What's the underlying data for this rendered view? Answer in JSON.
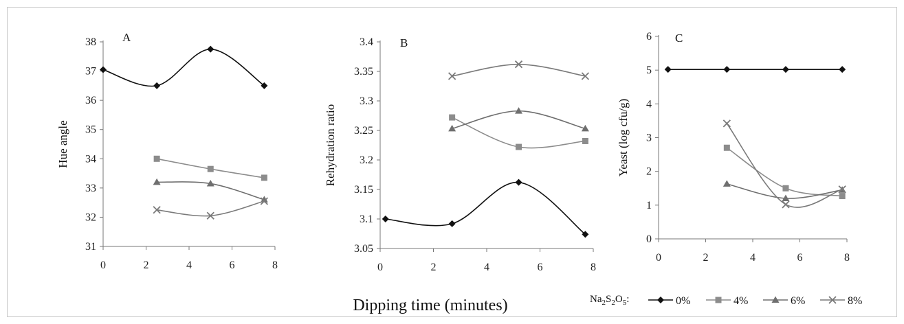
{
  "figure": {
    "xlabel": "Dipping time (minutes)",
    "legend_title_html": "Na₂S₂O₅:",
    "legend_title_parts": [
      "Na",
      "2",
      "S",
      "2",
      "O",
      "5",
      ":"
    ],
    "legend": [
      {
        "label": "0%",
        "marker": "diamond",
        "color": "#111111"
      },
      {
        "label": "4%",
        "marker": "square",
        "color": "#8c8c8c"
      },
      {
        "label": "6%",
        "marker": "triangle",
        "color": "#6f6f6f"
      },
      {
        "label": "8%",
        "marker": "cross",
        "color": "#7a7a7a"
      }
    ]
  },
  "chart_data": [
    {
      "type": "line",
      "panel_label": "A",
      "ylabel": "Hue angle",
      "xlim": [
        0,
        8
      ],
      "ylim": [
        31,
        38
      ],
      "xticks": [
        "0",
        "2",
        "4",
        "6",
        "8"
      ],
      "yticks": [
        "31",
        "32",
        "33",
        "34",
        "35",
        "36",
        "37",
        "38"
      ],
      "series": [
        {
          "name": "0%",
          "x": [
            0,
            2.5,
            5,
            7.5
          ],
          "y": [
            37.05,
            36.5,
            37.75,
            36.5
          ]
        },
        {
          "name": "4%",
          "x": [
            2.5,
            5,
            7.5
          ],
          "y": [
            34.0,
            33.65,
            33.35
          ]
        },
        {
          "name": "6%",
          "x": [
            2.5,
            5,
            7.5
          ],
          "y": [
            33.2,
            33.15,
            32.6
          ]
        },
        {
          "name": "8%",
          "x": [
            2.5,
            5,
            7.5
          ],
          "y": [
            32.25,
            32.05,
            32.55
          ]
        }
      ]
    },
    {
      "type": "line",
      "panel_label": "B",
      "ylabel": "Rehydration ratio",
      "xlim": [
        0,
        8
      ],
      "ylim": [
        3.05,
        3.4
      ],
      "xticks": [
        "0",
        "2",
        "4",
        "6",
        "8"
      ],
      "yticks": [
        "3.05",
        "3.1",
        "3.15",
        "3.2",
        "3.25",
        "3.3",
        "3.35",
        "3.4"
      ],
      "series": [
        {
          "name": "0%",
          "x": [
            0.2,
            2.7,
            5.2,
            7.7
          ],
          "y": [
            3.1,
            3.092,
            3.162,
            3.074
          ]
        },
        {
          "name": "4%",
          "x": [
            2.7,
            5.2,
            7.7
          ],
          "y": [
            3.272,
            3.222,
            3.232
          ]
        },
        {
          "name": "6%",
          "x": [
            2.7,
            5.2,
            7.7
          ],
          "y": [
            3.253,
            3.283,
            3.253
          ]
        },
        {
          "name": "8%",
          "x": [
            2.7,
            5.2,
            7.7
          ],
          "y": [
            3.342,
            3.362,
            3.342
          ]
        }
      ]
    },
    {
      "type": "line",
      "panel_label": "C",
      "ylabel": "Yeast (log cfu/g)",
      "xlim": [
        0,
        8
      ],
      "ylim": [
        0,
        6
      ],
      "xticks": [
        "0",
        "2",
        "4",
        "6",
        "8"
      ],
      "yticks": [
        "0",
        "1",
        "2",
        "3",
        "4",
        "5",
        "6"
      ],
      "series": [
        {
          "name": "0%",
          "x": [
            0.4,
            2.9,
            5.4,
            7.8
          ],
          "y": [
            5.02,
            5.02,
            5.02,
            5.02
          ]
        },
        {
          "name": "4%",
          "x": [
            2.9,
            5.4,
            7.8
          ],
          "y": [
            2.7,
            1.5,
            1.27
          ]
        },
        {
          "name": "6%",
          "x": [
            2.9,
            5.4,
            7.8
          ],
          "y": [
            1.63,
            1.2,
            1.45
          ]
        },
        {
          "name": "8%",
          "x": [
            2.9,
            5.4,
            7.8
          ],
          "y": [
            3.42,
            1.02,
            1.47
          ]
        }
      ]
    }
  ]
}
